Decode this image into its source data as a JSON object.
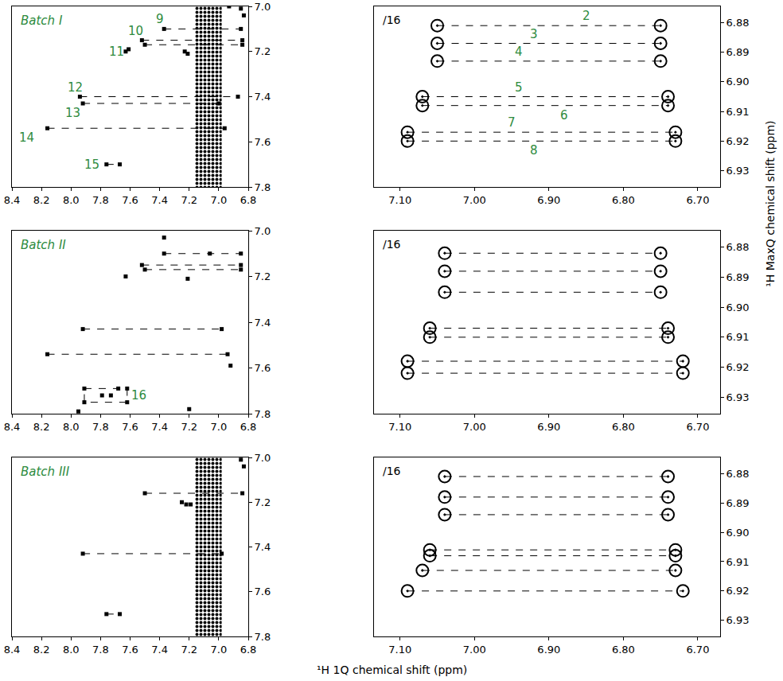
{
  "figure": {
    "x_label": "¹H 1Q chemical shift (ppm)",
    "y_label": "¹H MaxQ chemical shift (ppm)",
    "label_color": "#2e8b3e"
  },
  "chart_data": [
    {
      "type": "scatter",
      "title": "Batch I",
      "marker": "dot",
      "color": "#000000",
      "grid": false,
      "xlim": [
        8.4,
        6.8
      ],
      "xticks": [
        8.4,
        8.2,
        {
          "value": 8,
          "label": "8.0"
        },
        7.8,
        7.6,
        7.4,
        7.2,
        {
          "value": 7,
          "label": "7.0"
        },
        6.8
      ],
      "ylim": [
        7.8,
        7.0
      ],
      "yticks": [
        {
          "value": 7,
          "label": "7.0"
        },
        7.2,
        7.4,
        7.6,
        7.8
      ],
      "correlations": [
        {
          "y": 7.1,
          "x": [
            7.37,
            6.85
          ],
          "label": "9",
          "label_x": 7.4,
          "label_side": "above"
        },
        {
          "y": 7.15,
          "x": [
            7.52,
            6.84
          ],
          "label": "10",
          "label_x": 7.56,
          "label_side": "above"
        },
        {
          "y": 7.17,
          "x": [
            7.5,
            6.84
          ]
        },
        {
          "y": 7.4,
          "x": [
            7.94,
            6.87
          ],
          "label": "12",
          "label_x": 7.97,
          "label_side": "above"
        },
        {
          "y": 7.43,
          "x": [
            7.92,
            7.0
          ],
          "label": "13",
          "label_x": 7.99,
          "label_side": "below"
        },
        {
          "y": 7.54,
          "x": [
            8.16,
            6.96
          ],
          "label": "14",
          "label_x": 8.3,
          "label_side": "below"
        },
        {
          "y": 7.7,
          "x": [
            7.76,
            7.67
          ],
          "label": "15",
          "label_x": 7.86,
          "label_side": "level"
        }
      ],
      "peaks": [
        {
          "x": 7.63,
          "y": 7.2,
          "label": "11",
          "label_x": 7.69
        },
        {
          "x": 7.61,
          "y": 7.19
        },
        {
          "x": 7.23,
          "y": 7.2
        },
        {
          "x": 7.21,
          "y": 7.21
        },
        {
          "x": 6.85,
          "y": 7.01
        },
        {
          "x": 6.83,
          "y": 7.04
        },
        {
          "x": 6.93,
          "y": 7.0
        }
      ],
      "t1_noise": {
        "x": [
          7.16,
          6.98
        ],
        "y": [
          7.0,
          7.8
        ]
      }
    },
    {
      "type": "scatter",
      "scale_label": "/16",
      "marker": "contour",
      "color": "#000000",
      "grid": false,
      "xlim": [
        7.135,
        6.67
      ],
      "xticks": [
        {
          "value": 7.1,
          "label": "7.10"
        },
        {
          "value": 7.0,
          "label": "7.00"
        },
        {
          "value": 6.9,
          "label": "6.90"
        },
        {
          "value": 6.8,
          "label": "6.80"
        },
        {
          "value": 6.7,
          "label": "6.70"
        }
      ],
      "ylim": [
        6.9355,
        6.8745
      ],
      "yticks": [
        6.88,
        6.89,
        {
          "value": 6.9,
          "label": "6.90"
        },
        6.91,
        6.92,
        6.93
      ],
      "correlations": [
        {
          "y": 6.881,
          "x": [
            7.05,
            6.75
          ],
          "label": "2",
          "label_x": 6.85,
          "label_side": "above"
        },
        {
          "y": 6.887,
          "x": [
            7.05,
            6.75
          ],
          "label": "3",
          "label_x": 6.92,
          "label_side": "above"
        },
        {
          "y": 6.893,
          "x": [
            7.05,
            6.75
          ],
          "label": "4",
          "label_x": 6.94,
          "label_side": "above"
        },
        {
          "y": 6.905,
          "x": [
            7.07,
            6.74
          ],
          "label": "5",
          "label_x": 6.94,
          "label_side": "above"
        },
        {
          "y": 6.908,
          "x": [
            7.07,
            6.74
          ],
          "label": "6",
          "label_x": 6.88,
          "label_side": "below"
        },
        {
          "y": 6.917,
          "x": [
            7.09,
            6.73
          ],
          "label": "7",
          "label_x": 6.95,
          "label_side": "above"
        },
        {
          "y": 6.92,
          "x": [
            7.09,
            6.73
          ],
          "label": "8",
          "label_x": 6.92,
          "label_side": "below"
        }
      ]
    },
    {
      "type": "scatter",
      "title": "Batch II",
      "marker": "dot",
      "color": "#000000",
      "grid": false,
      "xlim": [
        8.4,
        6.8
      ],
      "xticks": [
        8.4,
        8.2,
        {
          "value": 8,
          "label": "8.0"
        },
        7.8,
        7.6,
        7.4,
        7.2,
        {
          "value": 7,
          "label": "7.0"
        },
        6.8
      ],
      "ylim": [
        7.8,
        7.0
      ],
      "yticks": [
        {
          "value": 7,
          "label": "7.0"
        },
        7.2,
        7.4,
        7.6,
        7.8
      ],
      "correlations": [
        {
          "y": 7.1,
          "x": [
            7.37,
            6.85
          ]
        },
        {
          "y": 7.15,
          "x": [
            7.52,
            6.85
          ]
        },
        {
          "y": 7.17,
          "x": [
            7.5,
            6.85
          ]
        },
        {
          "y": 7.43,
          "x": [
            7.92,
            6.98
          ]
        },
        {
          "y": 7.54,
          "x": [
            8.16,
            6.94
          ]
        }
      ],
      "peaks": [
        {
          "x": 7.63,
          "y": 7.2
        },
        {
          "x": 7.21,
          "y": 7.21
        },
        {
          "x": 7.79,
          "y": 7.72
        },
        {
          "x": 7.73,
          "y": 7.72
        },
        {
          "x": 7.06,
          "y": 7.1
        },
        {
          "x": 6.92,
          "y": 7.59
        },
        {
          "x": 7.95,
          "y": 7.79
        },
        {
          "x": 7.2,
          "y": 7.78
        },
        {
          "x": 7.37,
          "y": 7.03
        },
        {
          "x": 7.91,
          "y": 7.69
        },
        {
          "x": 7.62,
          "y": 7.69
        },
        {
          "x": 7.91,
          "y": 7.75
        },
        {
          "x": 7.62,
          "y": 7.75
        },
        {
          "x": 7.68,
          "y": 7.69
        }
      ],
      "boxes": [
        {
          "x": [
            7.91,
            7.62
          ],
          "y": [
            7.69,
            7.75
          ],
          "label": "16",
          "label_x": 7.54
        }
      ]
    },
    {
      "type": "scatter",
      "scale_label": "/16",
      "marker": "contour",
      "color": "#000000",
      "grid": false,
      "xlim": [
        7.135,
        6.67
      ],
      "xticks": [
        {
          "value": 7.1,
          "label": "7.10"
        },
        {
          "value": 7.0,
          "label": "7.00"
        },
        {
          "value": 6.9,
          "label": "6.90"
        },
        {
          "value": 6.8,
          "label": "6.80"
        },
        {
          "value": 6.7,
          "label": "6.70"
        }
      ],
      "ylim": [
        6.9355,
        6.8745
      ],
      "yticks": [
        6.88,
        6.89,
        {
          "value": 6.9,
          "label": "6.90"
        },
        6.91,
        6.92,
        6.93
      ],
      "correlations": [
        {
          "y": 6.882,
          "x": [
            7.04,
            6.75
          ]
        },
        {
          "y": 6.888,
          "x": [
            7.04,
            6.75
          ]
        },
        {
          "y": 6.895,
          "x": [
            7.04,
            6.75
          ]
        },
        {
          "y": 6.907,
          "x": [
            7.06,
            6.74
          ]
        },
        {
          "y": 6.91,
          "x": [
            7.06,
            6.74
          ]
        },
        {
          "y": 6.918,
          "x": [
            7.09,
            6.72
          ]
        },
        {
          "y": 6.922,
          "x": [
            7.09,
            6.72
          ]
        }
      ]
    },
    {
      "type": "scatter",
      "title": "Batch III",
      "marker": "dot",
      "color": "#000000",
      "grid": false,
      "xlim": [
        8.4,
        6.8
      ],
      "xticks": [
        8.4,
        8.2,
        {
          "value": 8,
          "label": "8.0"
        },
        7.8,
        7.6,
        7.4,
        7.2,
        {
          "value": 7,
          "label": "7.0"
        },
        6.8
      ],
      "ylim": [
        7.8,
        7.0
      ],
      "yticks": [
        {
          "value": 7,
          "label": "7.0"
        },
        7.2,
        7.4,
        7.6,
        7.8
      ],
      "correlations": [
        {
          "y": 7.16,
          "x": [
            7.5,
            6.84
          ]
        },
        {
          "y": 7.43,
          "x": [
            7.92,
            6.98
          ]
        },
        {
          "y": 7.7,
          "x": [
            7.76,
            7.67
          ]
        }
      ],
      "peaks": [
        {
          "x": 7.25,
          "y": 7.2
        },
        {
          "x": 7.22,
          "y": 7.21
        },
        {
          "x": 7.19,
          "y": 7.21
        },
        {
          "x": 6.85,
          "y": 7.01
        },
        {
          "x": 6.83,
          "y": 7.04
        }
      ],
      "t1_noise": {
        "x": [
          7.16,
          6.98
        ],
        "y": [
          7.0,
          7.8
        ]
      }
    },
    {
      "type": "scatter",
      "scale_label": "/16",
      "marker": "contour",
      "color": "#000000",
      "grid": false,
      "xlim": [
        7.135,
        6.67
      ],
      "xticks": [
        {
          "value": 7.1,
          "label": "7.10"
        },
        {
          "value": 7.0,
          "label": "7.00"
        },
        {
          "value": 6.9,
          "label": "6.90"
        },
        {
          "value": 6.8,
          "label": "6.80"
        },
        {
          "value": 6.7,
          "label": "6.70"
        }
      ],
      "ylim": [
        6.9355,
        6.8745
      ],
      "yticks": [
        6.88,
        6.89,
        {
          "value": 6.9,
          "label": "6.90"
        },
        6.91,
        6.92,
        6.93
      ],
      "correlations": [
        {
          "y": 6.881,
          "x": [
            7.04,
            6.74
          ]
        },
        {
          "y": 6.888,
          "x": [
            7.04,
            6.74
          ]
        },
        {
          "y": 6.894,
          "x": [
            7.04,
            6.74
          ]
        },
        {
          "y": 6.906,
          "x": [
            7.06,
            6.73
          ]
        },
        {
          "y": 6.908,
          "x": [
            7.06,
            6.73
          ]
        },
        {
          "y": 6.913,
          "x": [
            7.07,
            6.73
          ]
        },
        {
          "y": 6.92,
          "x": [
            7.09,
            6.72
          ]
        }
      ]
    }
  ]
}
